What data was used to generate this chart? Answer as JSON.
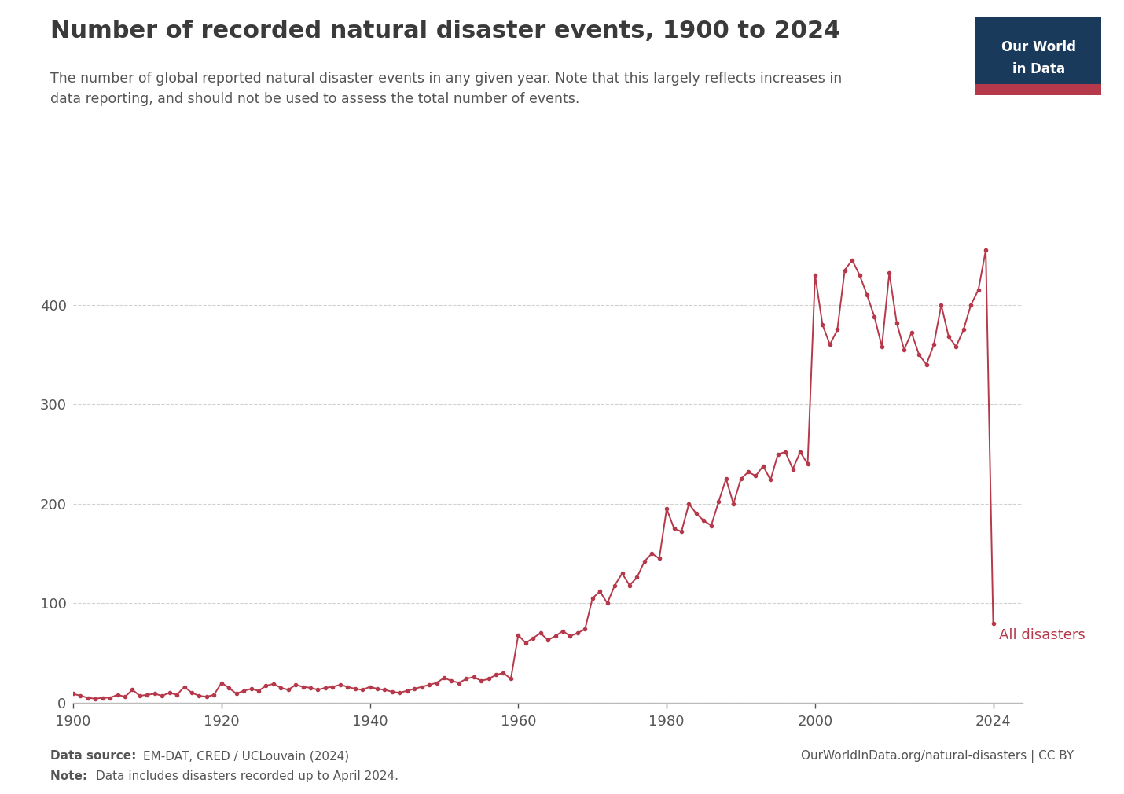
{
  "title": "Number of recorded natural disaster events, 1900 to 2024",
  "subtitle": "The number of global reported natural disaster events in any given year. Note that this largely reflects increases in\ndata reporting, and should not be used to assess the total number of events.",
  "datasource_bold": "Data source: ",
  "datasource_normal": "EM-DAT, CRED / UCLouvain (2024)",
  "note_bold": "Note: ",
  "note_normal": "Data includes disasters recorded up to April 2024.",
  "url": "OurWorldInData.org/natural-disasters | CC BY",
  "line_label": "All disasters",
  "line_color": "#b5394a",
  "bg_color": "#ffffff",
  "grid_color": "#cccccc",
  "title_color": "#3a3a3a",
  "subtitle_color": "#555555",
  "footer_color": "#555555",
  "owid_box_color": "#1a3a5c",
  "owid_box_text_line1": "Our World",
  "owid_box_text_line2": "in Data",
  "owid_accent_color": "#b5394a",
  "years": [
    1900,
    1901,
    1902,
    1903,
    1904,
    1905,
    1906,
    1907,
    1908,
    1909,
    1910,
    1911,
    1912,
    1913,
    1914,
    1915,
    1916,
    1917,
    1918,
    1919,
    1920,
    1921,
    1922,
    1923,
    1924,
    1925,
    1926,
    1927,
    1928,
    1929,
    1930,
    1931,
    1932,
    1933,
    1934,
    1935,
    1936,
    1937,
    1938,
    1939,
    1940,
    1941,
    1942,
    1943,
    1944,
    1945,
    1946,
    1947,
    1948,
    1949,
    1950,
    1951,
    1952,
    1953,
    1954,
    1955,
    1956,
    1957,
    1958,
    1959,
    1960,
    1961,
    1962,
    1963,
    1964,
    1965,
    1966,
    1967,
    1968,
    1969,
    1970,
    1971,
    1972,
    1973,
    1974,
    1975,
    1976,
    1977,
    1978,
    1979,
    1980,
    1981,
    1982,
    1983,
    1984,
    1985,
    1986,
    1987,
    1988,
    1989,
    1990,
    1991,
    1992,
    1993,
    1994,
    1995,
    1996,
    1997,
    1998,
    1999,
    2000,
    2001,
    2002,
    2003,
    2004,
    2005,
    2006,
    2007,
    2008,
    2009,
    2010,
    2011,
    2012,
    2013,
    2014,
    2015,
    2016,
    2017,
    2018,
    2019,
    2020,
    2021,
    2022,
    2023,
    2024
  ],
  "values": [
    9,
    7,
    5,
    4,
    5,
    5,
    8,
    6,
    13,
    7,
    8,
    9,
    7,
    10,
    8,
    16,
    10,
    7,
    6,
    8,
    20,
    15,
    9,
    12,
    14,
    12,
    17,
    19,
    15,
    13,
    18,
    16,
    15,
    13,
    15,
    16,
    18,
    16,
    14,
    13,
    16,
    14,
    13,
    11,
    10,
    12,
    14,
    16,
    18,
    20,
    25,
    22,
    20,
    24,
    26,
    22,
    24,
    28,
    30,
    24,
    68,
    60,
    65,
    70,
    63,
    67,
    72,
    67,
    70,
    74,
    105,
    112,
    100,
    118,
    130,
    118,
    126,
    142,
    150,
    145,
    195,
    175,
    172,
    200,
    190,
    183,
    178,
    202,
    225,
    200,
    225,
    232,
    228,
    238,
    224,
    250,
    252,
    235,
    252,
    240,
    430,
    380,
    360,
    375,
    435,
    445,
    430,
    410,
    388,
    358,
    432,
    382,
    355,
    372,
    350,
    340,
    360,
    400,
    368,
    358,
    375,
    400,
    415,
    455,
    80
  ],
  "ylim": [
    0,
    475
  ],
  "yticks": [
    0,
    100,
    200,
    300,
    400
  ],
  "xlim": [
    1900,
    2028
  ],
  "xticks": [
    1900,
    1920,
    1940,
    1960,
    1980,
    2000,
    2024
  ]
}
